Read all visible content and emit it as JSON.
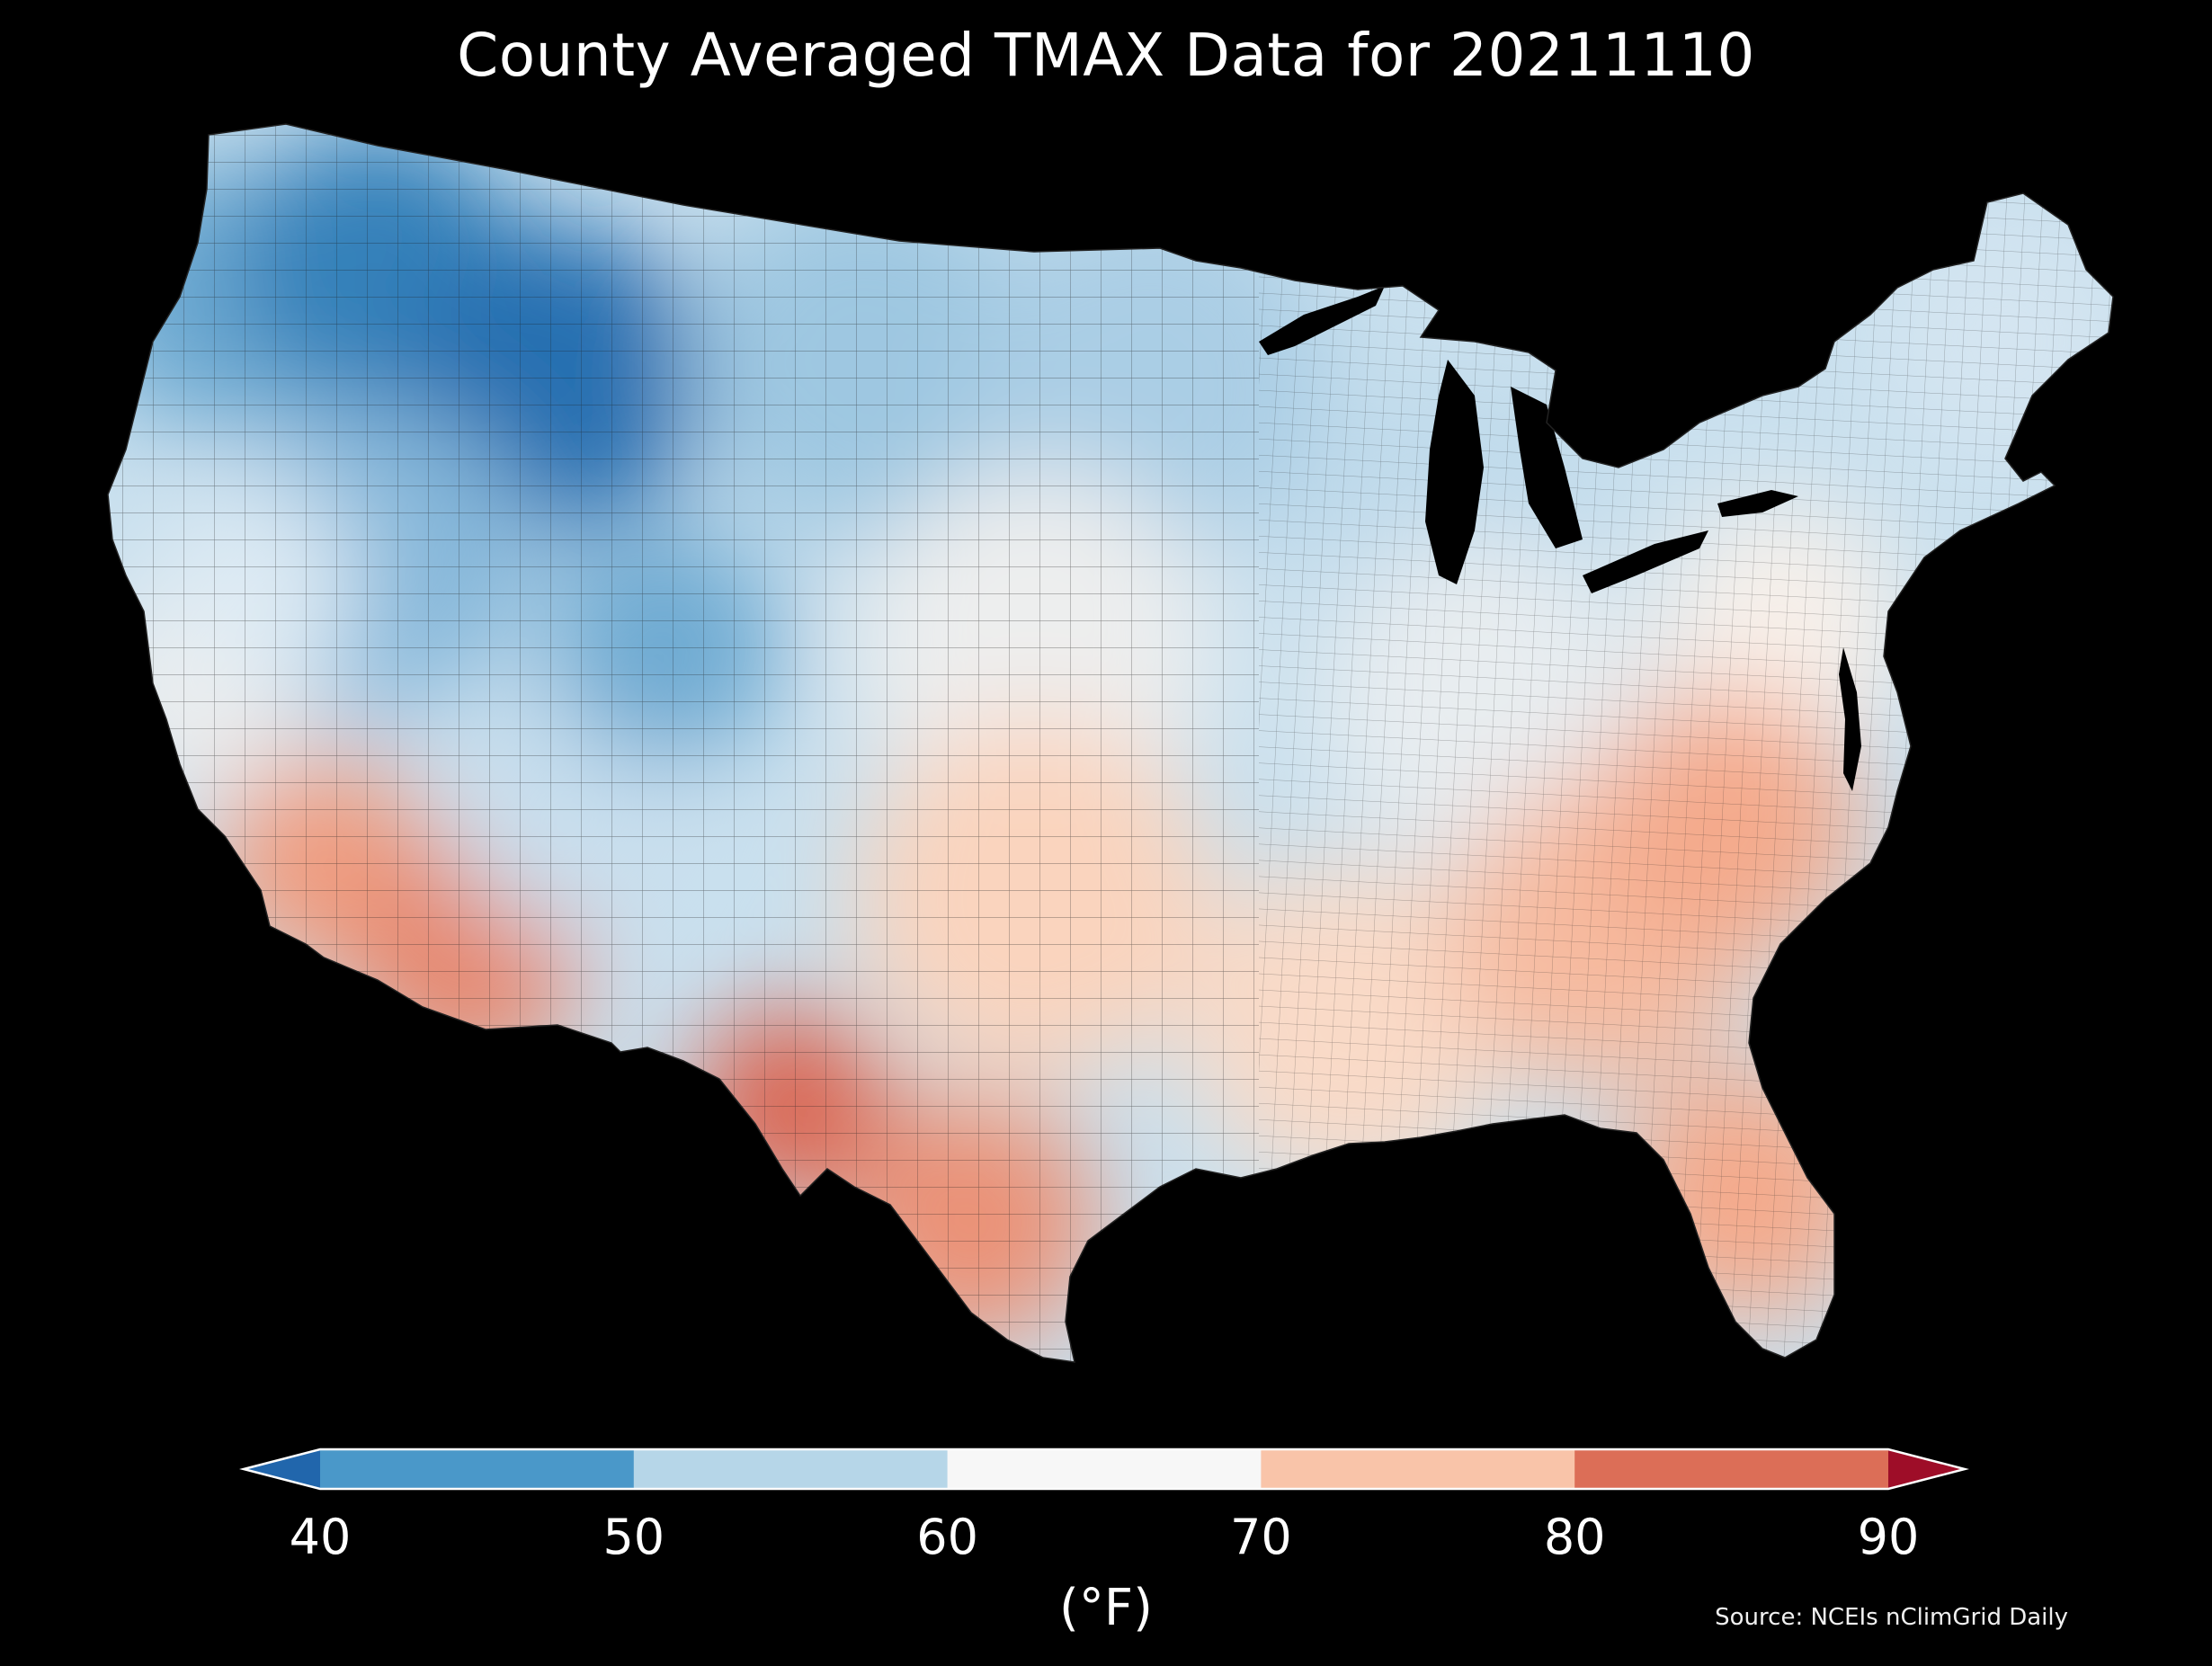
{
  "title": "County Averaged TMAX Data for 20211110",
  "map": {
    "region": "contiguous-united-states",
    "variable": "TMAX",
    "boundaries": "county",
    "regional_values_F": {
      "pacific_northwest_coast": 50,
      "northern_rockies": 43,
      "montana_wyoming_core": 41,
      "great_basin": 52,
      "california_coast": 63,
      "california_central": 60,
      "southern_california_desert": 76,
      "arizona_southwest": 78,
      "colorado_plateau": 58,
      "colorado_rockies": 50,
      "northern_plains": 54,
      "upper_midwest": 55,
      "great_lakes": 57,
      "new_england": 59,
      "mid_atlantic": 65,
      "ohio_valley": 62,
      "central_plains": 63,
      "southern_plains": 70,
      "west_texas_big_bend": 81,
      "south_texas": 77,
      "gulf_coast": 69,
      "southeast": 73,
      "carolinas_piedmont": 75,
      "florida": 75
    }
  },
  "colorbar": {
    "ticks": [
      "40",
      "50",
      "60",
      "70",
      "80",
      "90"
    ],
    "colors": [
      "#4a98c9",
      "#b6d6e8",
      "#f7f7f7",
      "#f9c4a9",
      "#dc6e57"
    ],
    "under_color": "#2166ac",
    "over_color": "#9e0d28",
    "units": "(°F)"
  },
  "source": "Source: NCEIs nClimGrid Daily"
}
